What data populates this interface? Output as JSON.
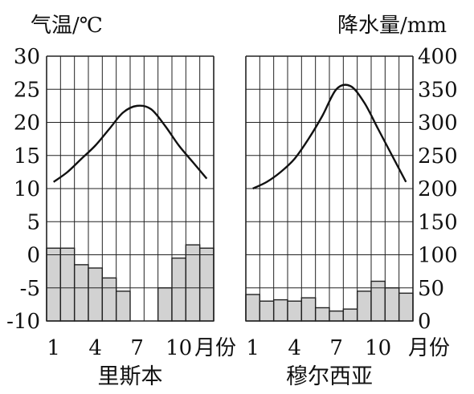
{
  "labels": {
    "left_axis_title": "气温/℃",
    "right_axis_title": "降水量/mm",
    "month_axis_title": "月份"
  },
  "chart_data": [
    {
      "type": "bar+line",
      "name": "里斯本",
      "months": [
        1,
        2,
        3,
        4,
        5,
        6,
        7,
        8,
        9,
        10,
        11,
        12
      ],
      "month_tick_labels": [
        "1",
        "4",
        "7",
        "10"
      ],
      "temperature_c": [
        11,
        12.5,
        14.5,
        16.5,
        19,
        21.5,
        22.5,
        22,
        19.5,
        16.5,
        14,
        11.5
      ],
      "precipitation_mm": [
        110,
        110,
        85,
        80,
        65,
        45,
        0,
        0,
        50,
        95,
        115,
        110
      ],
      "temp_ylim": [
        -10,
        30
      ],
      "temp_ticks": [
        30,
        25,
        20,
        15,
        10,
        5,
        0,
        -5,
        -10
      ],
      "temp_tick_labels": [
        "30",
        "25",
        "20",
        "15",
        "10",
        "5",
        "0",
        "-5",
        "-10"
      ],
      "precip_ylim": [
        0,
        400
      ],
      "grid": true
    },
    {
      "type": "bar+line",
      "name": "穆尔西亚",
      "months": [
        1,
        2,
        3,
        4,
        5,
        6,
        7,
        8,
        9,
        10,
        11,
        12
      ],
      "month_tick_labels": [
        "1",
        "4",
        "7",
        "10"
      ],
      "temperature_c": [
        10,
        11,
        12.5,
        14.5,
        17.5,
        21,
        25,
        25.5,
        23,
        19,
        15,
        11
      ],
      "precipitation_mm": [
        40,
        30,
        32,
        30,
        35,
        20,
        15,
        18,
        45,
        60,
        50,
        42
      ],
      "temp_ylim": [
        -10,
        30
      ],
      "precip_ylim": [
        0,
        400
      ],
      "precip_ticks": [
        400,
        350,
        300,
        250,
        200,
        150,
        100,
        50,
        0
      ],
      "precip_tick_labels": [
        "400",
        "350",
        "300",
        "250",
        "200",
        "150",
        "100",
        "50",
        "0"
      ],
      "grid": true
    }
  ]
}
